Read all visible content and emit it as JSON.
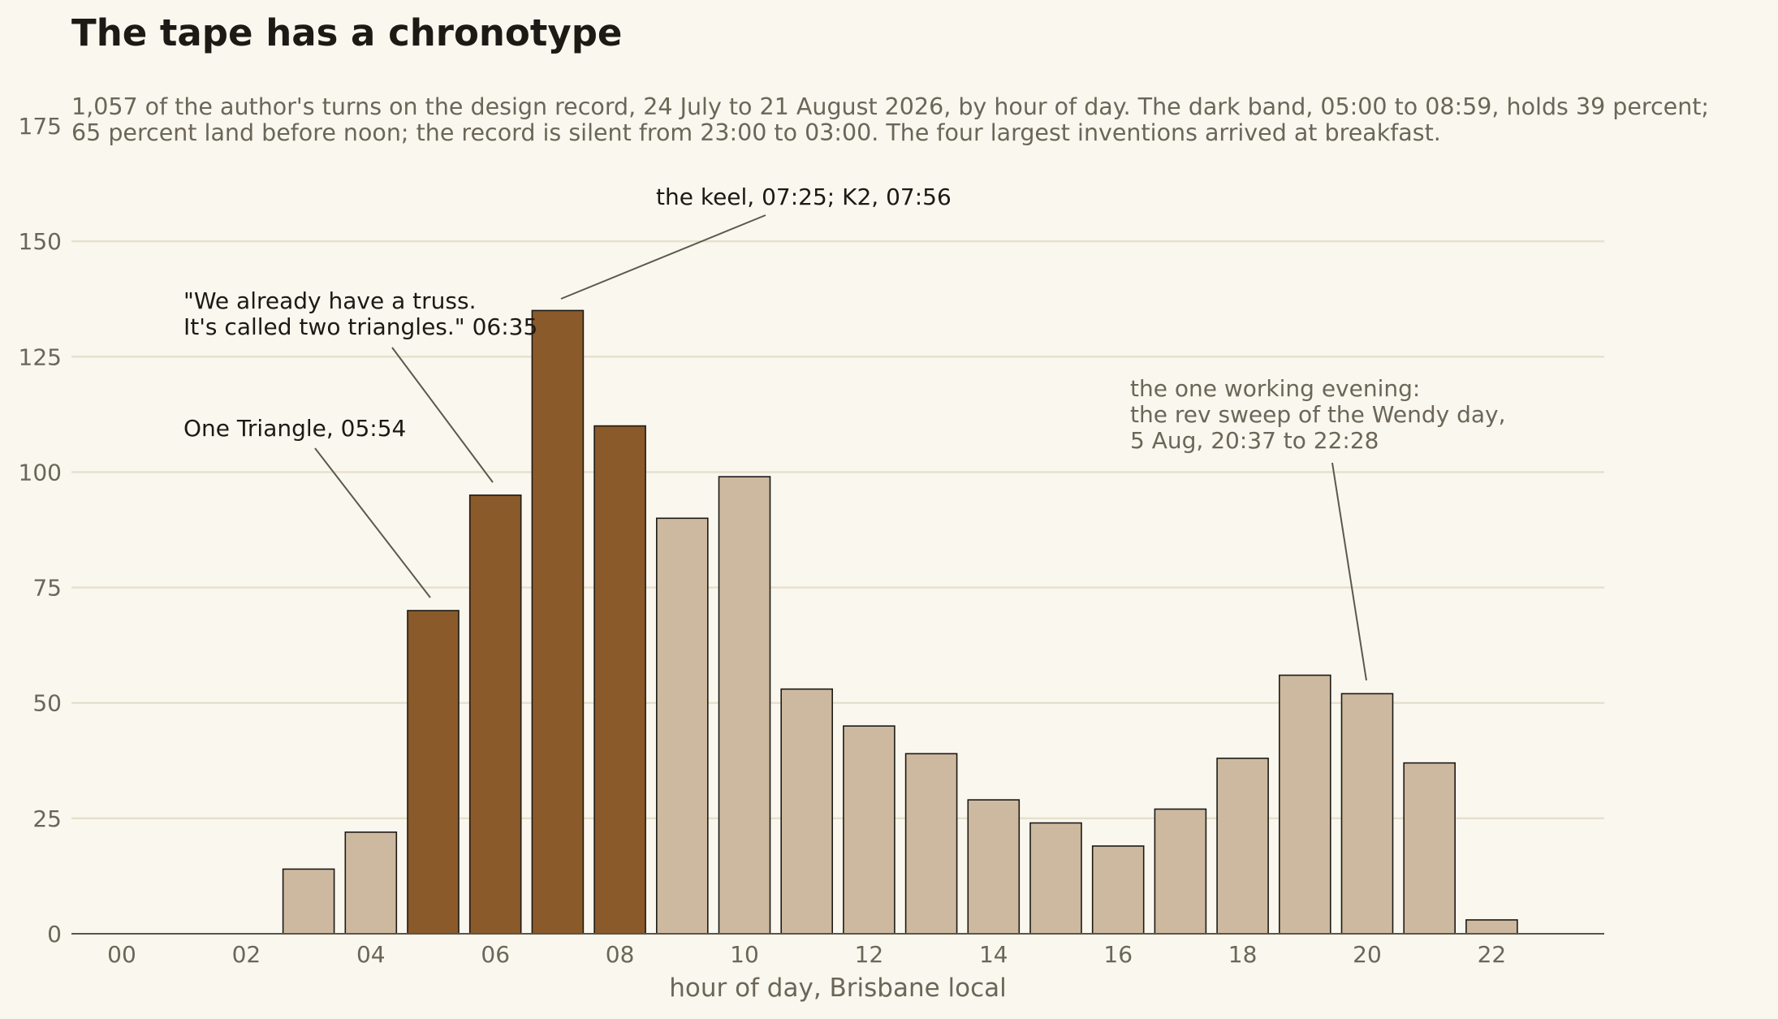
{
  "title": "The tape has a chronotype",
  "subtitle": [
    "1,057 of the author's turns on the design record, 24 July to 21 August 2026, by hour of day. The dark band, 05:00 to 08:59, holds 39 percent;",
    "65 percent land before noon; the record is silent from 23:00 to 03:00. The four largest inventions arrived at breakfast."
  ],
  "colors": {
    "background": "#faf7ef",
    "bar_highlight": "#8a5a2b",
    "bar_default": "#cdb99f",
    "bar_edge": "#1d1a15",
    "grid": "#e6e0cc",
    "axis_text": "#6b6658",
    "annotation_dark": "#1d1a15",
    "annotation_muted": "#6b6658",
    "leader": "#5a5a4a"
  },
  "chart_data": {
    "type": "bar",
    "title": "The tape has a chronotype",
    "xlabel": "hour of day, Brisbane local",
    "ylabel": "",
    "ylim": [
      0,
      175
    ],
    "yticks": [
      0,
      25,
      50,
      75,
      100,
      125,
      150,
      175
    ],
    "grid": true,
    "x_tick_labels": [
      "00",
      "02",
      "04",
      "06",
      "08",
      "10",
      "12",
      "14",
      "16",
      "18",
      "20",
      "22"
    ],
    "x_tick_hours": [
      0,
      2,
      4,
      6,
      8,
      10,
      12,
      14,
      16,
      18,
      20,
      22
    ],
    "categories": [
      0,
      1,
      2,
      3,
      4,
      5,
      6,
      7,
      8,
      9,
      10,
      11,
      12,
      13,
      14,
      15,
      16,
      17,
      18,
      19,
      20,
      21,
      22,
      23
    ],
    "values": [
      0,
      0,
      0,
      14,
      22,
      70,
      95,
      135,
      110,
      90,
      99,
      53,
      45,
      39,
      29,
      24,
      19,
      27,
      38,
      56,
      52,
      37,
      3,
      0
    ],
    "highlight_hours": [
      5,
      6,
      7,
      8
    ],
    "annotations": [
      {
        "lines": [
          "One Triangle, 05:54"
        ],
        "target_hour": 5,
        "tone": "dark"
      },
      {
        "lines": [
          "\"We already have a truss.",
          "It's called two triangles.\" 06:35"
        ],
        "target_hour": 6,
        "tone": "dark"
      },
      {
        "lines": [
          "the keel, 07:25; K2, 07:56"
        ],
        "target_hour": 7,
        "tone": "dark"
      },
      {
        "lines": [
          "the one working evening:",
          "the rev sweep of the Wendy day,",
          "5 Aug, 20:37 to 22:28"
        ],
        "target_hour": 20,
        "tone": "muted"
      }
    ]
  }
}
